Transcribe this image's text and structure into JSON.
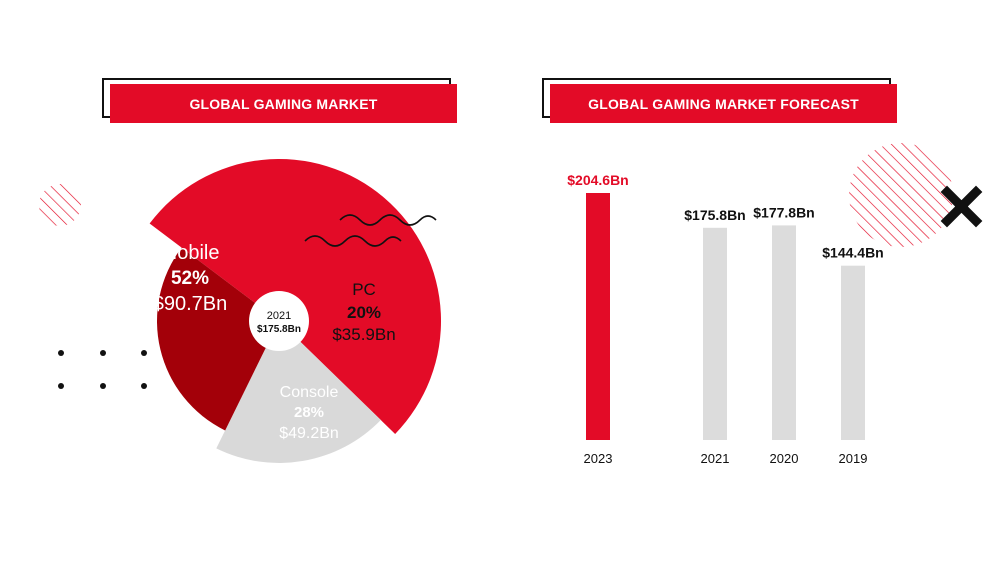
{
  "left_title": "GLOBAL GAMING MARKET",
  "right_title": "GLOBAL GAMING MARKET FORECAST",
  "colors": {
    "accent": "#e30b27",
    "dark_red": "#a30009",
    "gray": "#d9d9d9",
    "light_gray": "#dcdcdc"
  },
  "chart_data": [
    {
      "type": "pie",
      "title": "GLOBAL GAMING MARKET",
      "center_label": {
        "year": "2021",
        "total": "$175.8Bn"
      },
      "slices": [
        {
          "name": "Mobile",
          "percent_label": "52%",
          "value_label": "$90.7Bn",
          "percent": 52,
          "value": 90.7,
          "color": "#e30b27"
        },
        {
          "name": "PC",
          "percent_label": "20%",
          "value_label": "$35.9Bn",
          "percent": 20,
          "value": 35.9,
          "color": "#d9d9d9"
        },
        {
          "name": "Console",
          "percent_label": "28%",
          "value_label": "$49.2Bn",
          "percent": 28,
          "value": 49.2,
          "color": "#a30009"
        }
      ]
    },
    {
      "type": "bar",
      "title": "GLOBAL GAMING MARKET FORECAST",
      "categories": [
        "2023",
        "2021",
        "2020",
        "2019"
      ],
      "values": [
        204.6,
        175.8,
        177.8,
        144.4
      ],
      "value_labels": [
        "$204.6Bn",
        "$175.8Bn",
        "$177.8Bn",
        "$144.4Bn"
      ],
      "bar_colors": [
        "#e30b27",
        "#dcdcdc",
        "#dcdcdc",
        "#dcdcdc"
      ],
      "label_colors": [
        "#e30b27",
        "#111111",
        "#111111",
        "#111111"
      ],
      "ylim": [
        0,
        204.6
      ]
    }
  ]
}
